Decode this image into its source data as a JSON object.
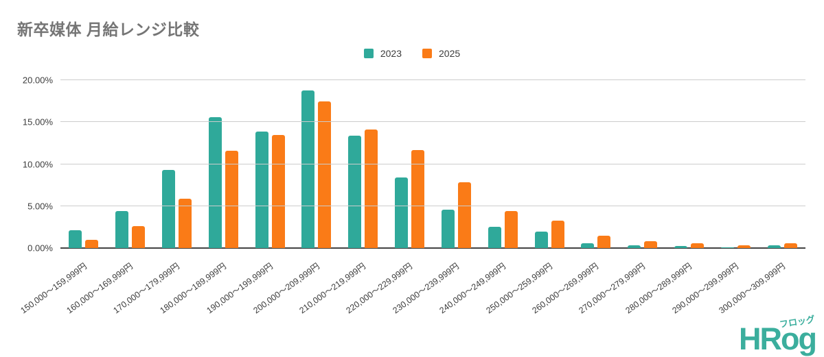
{
  "title": "新卒媒体 月給レンジ比較",
  "colors": {
    "series_2023": "#2FA99A",
    "series_2025": "#FA7B17",
    "grid": "#cccccc",
    "axis": "#424242",
    "title_text": "#757575",
    "tick_text": "#3c3c3c",
    "logo": "#3BAE9D"
  },
  "chart_data": {
    "type": "bar",
    "title": "新卒媒体 月給レンジ比較",
    "categories": [
      "150,000～159,999円",
      "160,000～169,999円",
      "170,000～179,999円",
      "180,000～189,999円",
      "190,000～199,999円",
      "200,000～209,999円",
      "210,000～219,999円",
      "220,000～229,999円",
      "230,000～239,999円",
      "240,000～249,999円",
      "250,000～259,999円",
      "260,000～269,999円",
      "270,000～279,999円",
      "280,000～289,999円",
      "290,000～299,999円",
      "300,000～309,999円"
    ],
    "series": [
      {
        "name": "2023",
        "color": "#2FA99A",
        "values": [
          2.1,
          4.4,
          9.3,
          15.6,
          13.9,
          18.8,
          13.4,
          8.4,
          4.6,
          2.5,
          2.0,
          0.6,
          0.35,
          0.25,
          0.1,
          0.35
        ]
      },
      {
        "name": "2025",
        "color": "#FA7B17",
        "values": [
          1.0,
          2.6,
          5.9,
          11.6,
          13.5,
          17.5,
          14.1,
          11.7,
          7.8,
          4.4,
          3.3,
          1.5,
          0.8,
          0.6,
          0.3,
          0.6
        ]
      }
    ],
    "ylim": [
      0,
      20
    ],
    "yticks": [
      "0.00%",
      "5.00%",
      "10.00%",
      "15.00%",
      "20.00%"
    ],
    "grid": true,
    "legend_position": "top"
  },
  "logo": {
    "text": "HRog",
    "ruby": "フロッグ"
  }
}
